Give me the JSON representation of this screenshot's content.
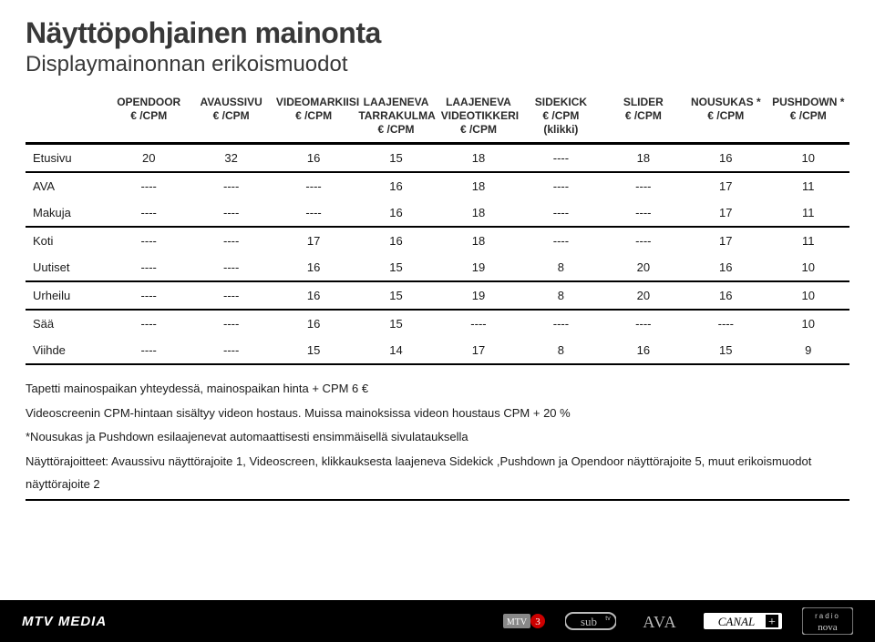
{
  "title": "Näyttöpohjainen mainonta",
  "subtitle": "Displaymainonnan erikoismuodot",
  "columns": [
    {
      "h1": "OPENDOOR",
      "h2": "€ /CPM"
    },
    {
      "h1": "AVAUSSIVU",
      "h2": "€ /CPM"
    },
    {
      "h1": "VIDEOMARKIISI",
      "h2": "€ /CPM"
    },
    {
      "h1": "LAAJENEVA",
      "h2": "TARRAKULMA",
      "h3": "€ /CPM"
    },
    {
      "h1": "LAAJENEVA",
      "h2": "VIDEOTIKKERI",
      "h3": "€ /CPM"
    },
    {
      "h1": "SIDEKICK",
      "h2": "€ /CPM",
      "h3": "(klikki)"
    },
    {
      "h1": "SLIDER",
      "h2": "€ /CPM"
    },
    {
      "h1": "NOUSUKAS *",
      "h2": "€ /CPM"
    },
    {
      "h1": "PUSHDOWN *",
      "h2": "€ /CPM"
    }
  ],
  "rows": [
    {
      "label": "Etusivu",
      "sep": true,
      "cells": [
        "20",
        "32",
        "16",
        "15",
        "18",
        "----",
        "18",
        "16",
        "10"
      ]
    },
    {
      "label": "AVA",
      "sep": false,
      "cells": [
        "----",
        "----",
        "----",
        "16",
        "18",
        "----",
        "----",
        "17",
        "11"
      ]
    },
    {
      "label": "Makuja",
      "sep": true,
      "cells": [
        "----",
        "----",
        "----",
        "16",
        "18",
        "----",
        "----",
        "17",
        "11"
      ]
    },
    {
      "label": "Koti",
      "sep": false,
      "cells": [
        "----",
        "----",
        "17",
        "16",
        "18",
        "----",
        "----",
        "17",
        "11"
      ]
    },
    {
      "label": "Uutiset",
      "sep": true,
      "cells": [
        "----",
        "----",
        "16",
        "15",
        "19",
        "8",
        "20",
        "16",
        "10"
      ]
    },
    {
      "label": "Urheilu",
      "sep": true,
      "cells": [
        "----",
        "----",
        "16",
        "15",
        "19",
        "8",
        "20",
        "16",
        "10"
      ]
    },
    {
      "label": "Sää",
      "sep": false,
      "cells": [
        "----",
        "----",
        "16",
        "15",
        "----",
        "----",
        "----",
        "----",
        "10"
      ]
    },
    {
      "label": "Viihde",
      "sep": true,
      "cells": [
        "----",
        "----",
        "15",
        "14",
        "17",
        "8",
        "16",
        "15",
        "9"
      ]
    }
  ],
  "notes": [
    "Tapetti mainospaikan yhteydessä, mainospaikan hinta + CPM 6 €",
    "Videoscreenin CPM-hintaan sisältyy videon hostaus. Muissa mainoksissa videon houstaus CPM + 20 %",
    "*Nousukas ja Pushdown esilaajenevat automaattisesti ensimmäisellä sivulatauksella",
    "Näyttörajoitteet: Avaussivu näyttörajoite 1, Videoscreen, klikkauksesta laajeneva Sidekick ,Pushdown ja Opendoor näyttörajoite 5, muut erikoismuodot näyttörajoite 2"
  ],
  "footer": {
    "brand": "MTV MEDIA",
    "logos": [
      "mtv3",
      "sub",
      "ava",
      "canalplus",
      "radionova"
    ]
  },
  "colors": {
    "text": "#1a1a1a",
    "heading": "#383838",
    "rule": "#000000",
    "footer_bg": "#000000",
    "footer_fg": "#ffffff"
  }
}
